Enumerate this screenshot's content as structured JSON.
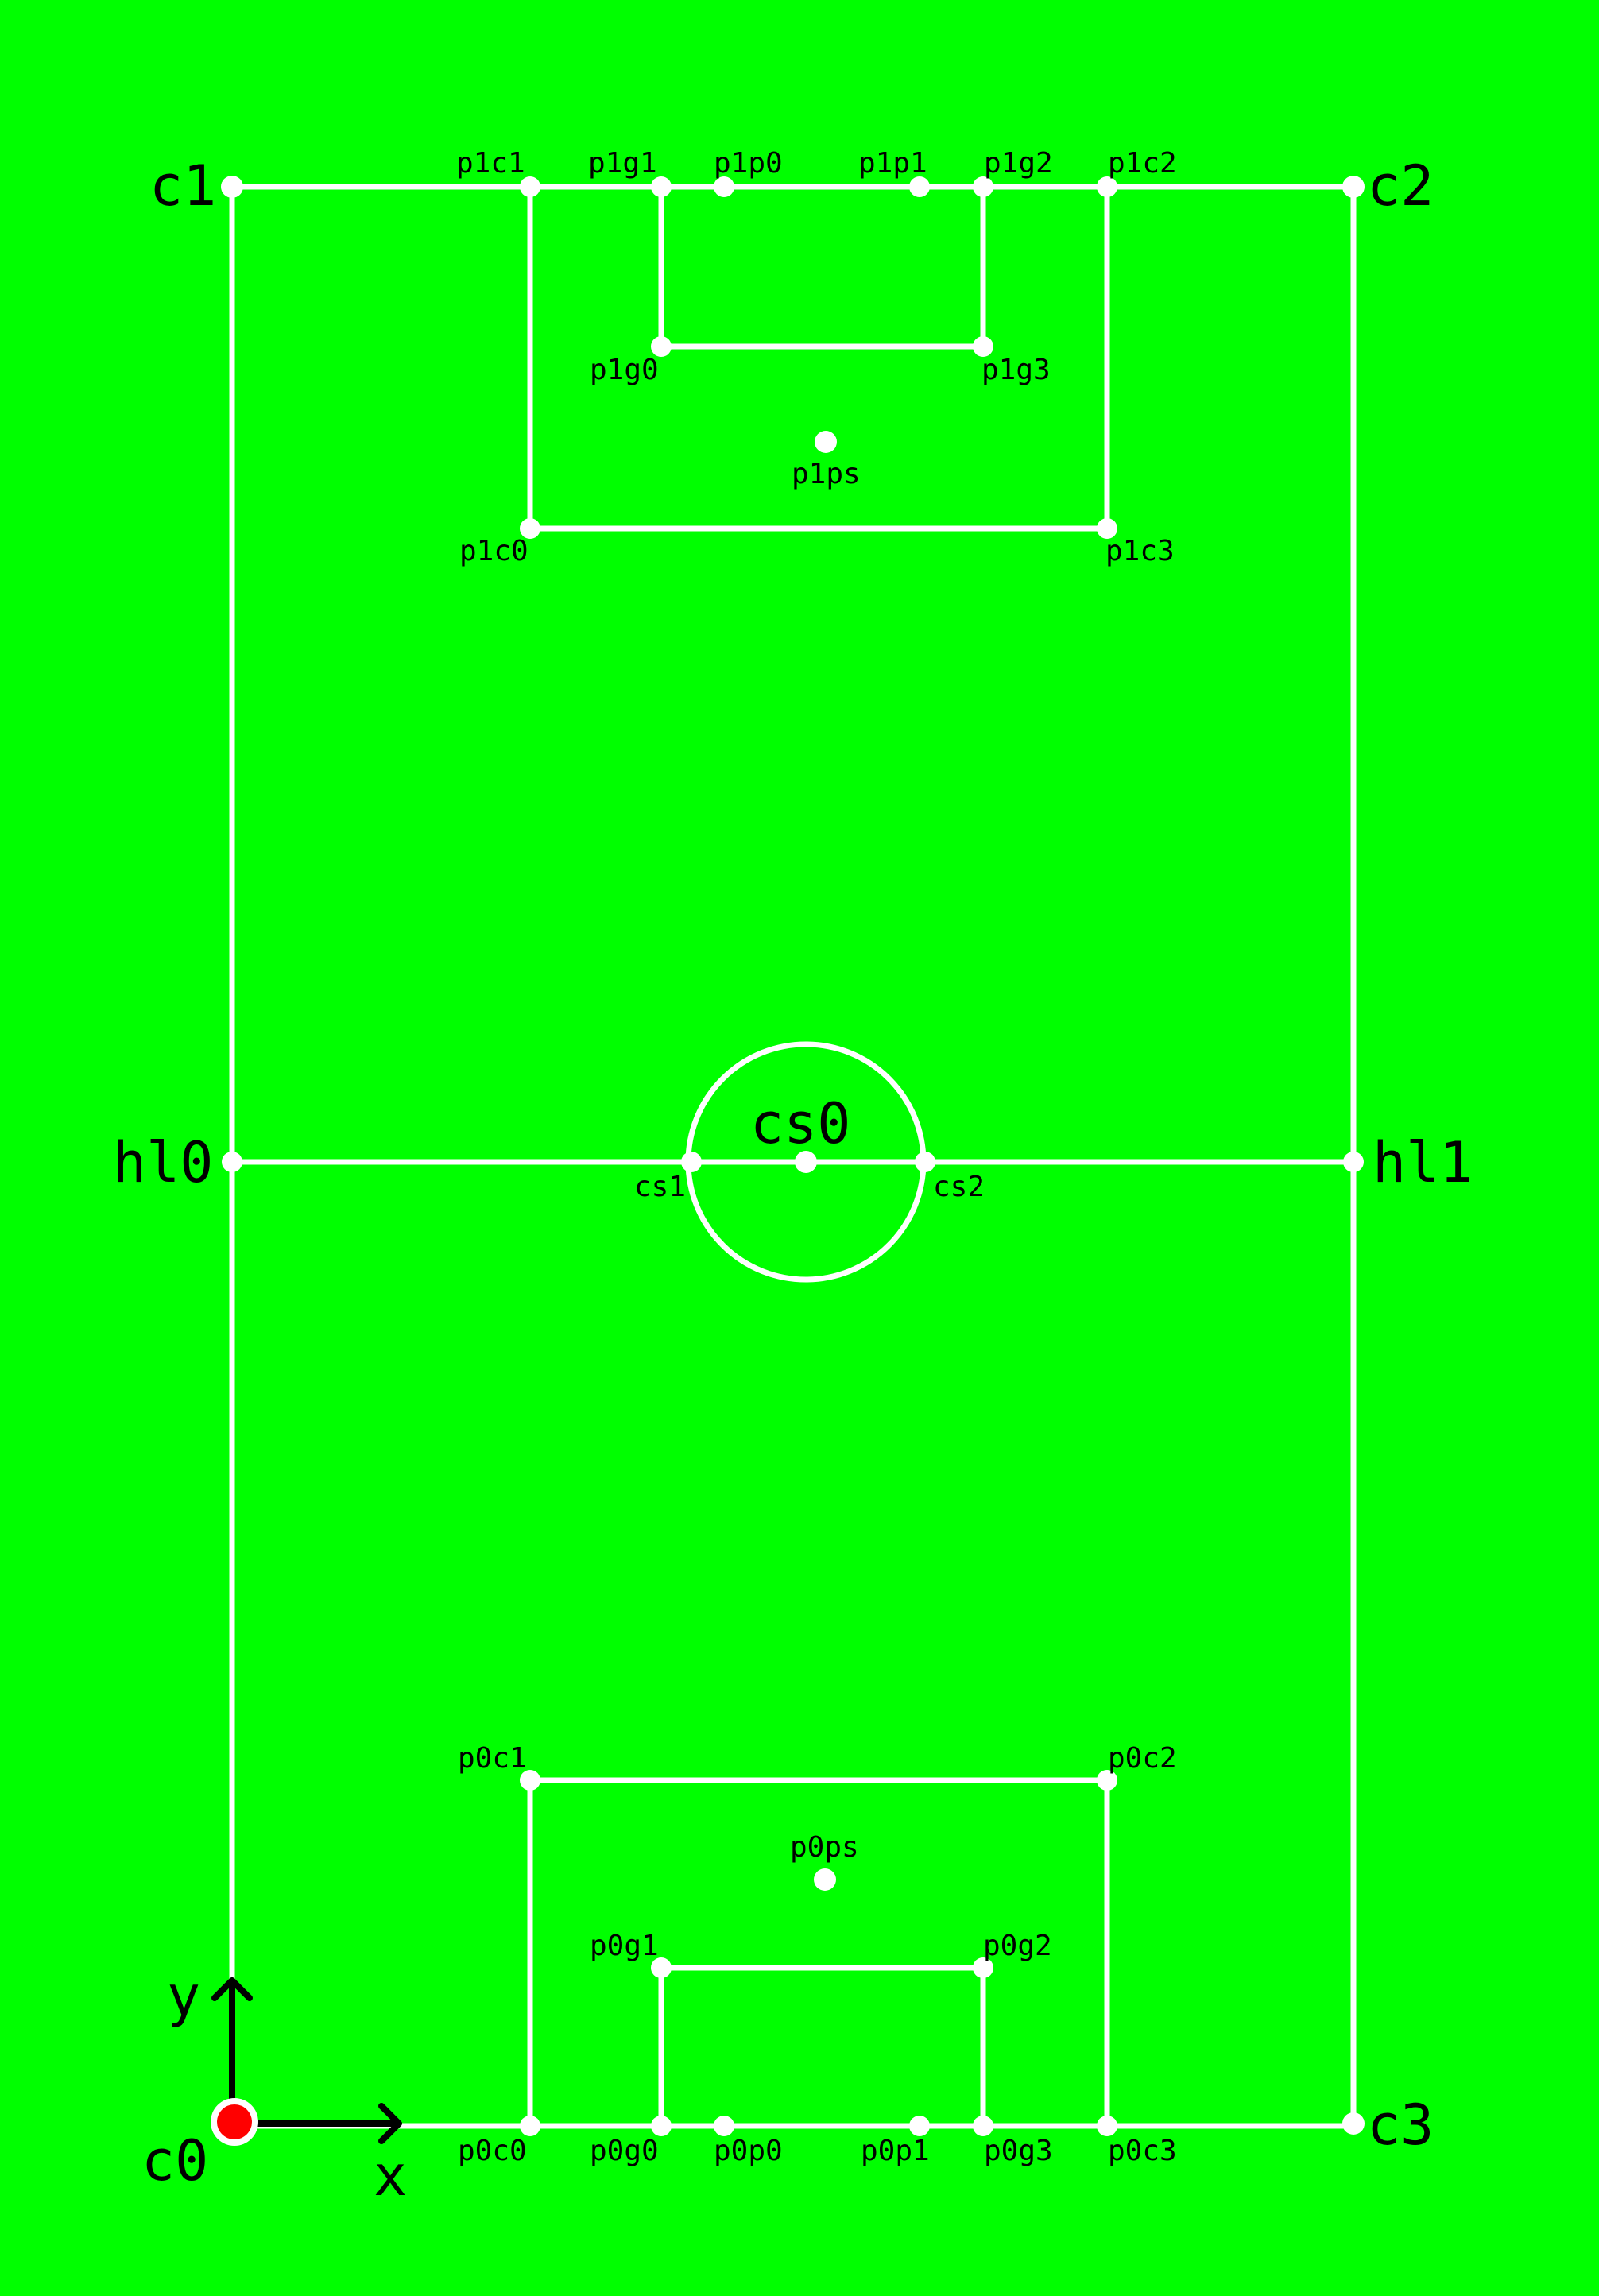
{
  "colors": {
    "field": "#00ff00",
    "lines": "#ffffff",
    "labels": "#000000",
    "origin": "#ff0000"
  },
  "labels": {
    "c0": "c0",
    "c1": "c1",
    "c2": "c2",
    "c3": "c3",
    "hl0": "hl0",
    "hl1": "hl1",
    "cs0": "cs0",
    "cs1": "cs1",
    "cs2": "cs2",
    "p1c0": "p1c0",
    "p1c1": "p1c1",
    "p1c2": "p1c2",
    "p1c3": "p1c3",
    "p1g0": "p1g0",
    "p1g1": "p1g1",
    "p1g2": "p1g2",
    "p1g3": "p1g3",
    "p1p0": "p1p0",
    "p1p1": "p1p1",
    "p1ps": "p1ps",
    "p0c0": "p0c0",
    "p0c1": "p0c1",
    "p0c2": "p0c2",
    "p0c3": "p0c3",
    "p0g0": "p0g0",
    "p0g1": "p0g1",
    "p0g2": "p0g2",
    "p0g3": "p0g3",
    "p0p0": "p0p0",
    "p0p1": "p0p1",
    "p0ps": "p0ps"
  },
  "axes": {
    "x": "x",
    "y": "y"
  }
}
